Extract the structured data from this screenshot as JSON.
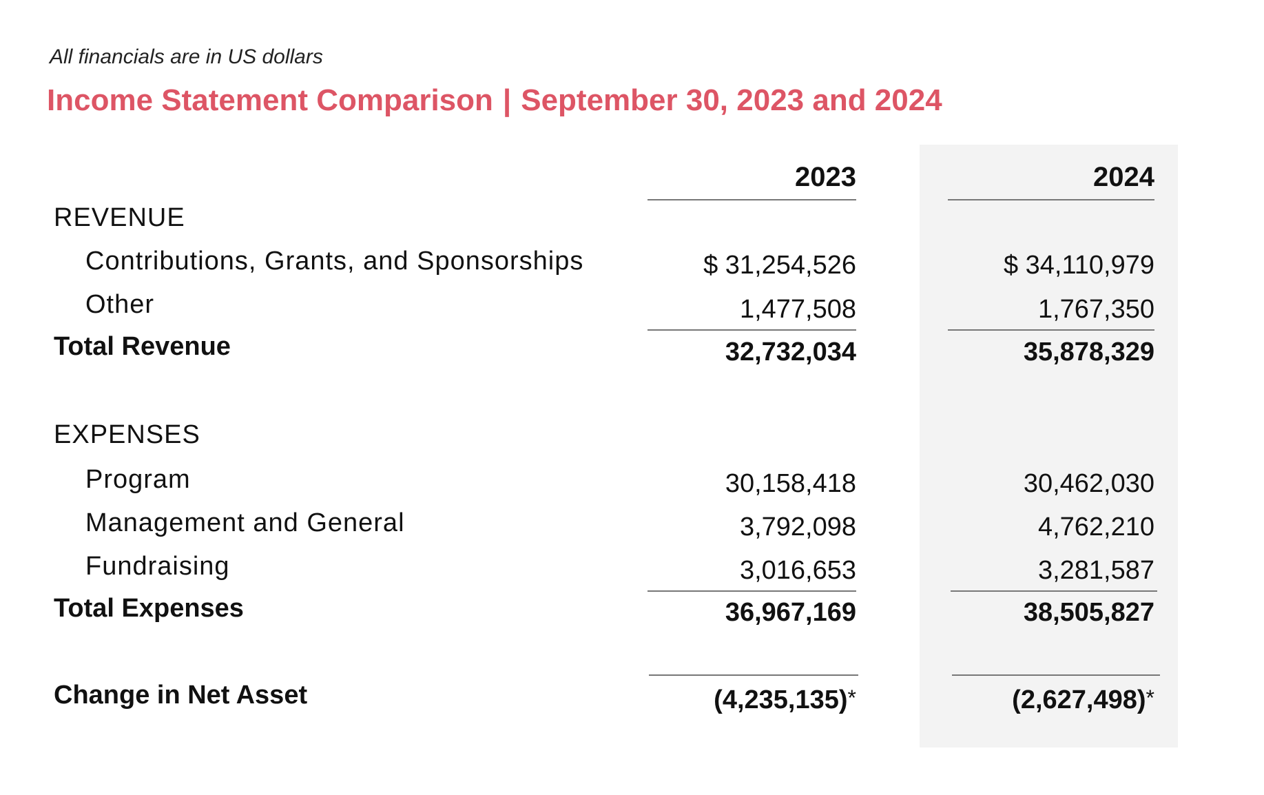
{
  "note": "All financials are in US dollars",
  "title": {
    "left": "Income Statement Comparison",
    "separator": "|",
    "right": "September 30, 2023 and 2024"
  },
  "columns": {
    "y2023": "2023",
    "y2024": "2024"
  },
  "revenue": {
    "header": "REVENUE",
    "contributions": {
      "label": "Contributions, Grants, and Sponsorships",
      "y2023": "$ 31,254,526",
      "y2024": "$ 34,110,979"
    },
    "other": {
      "label": "Other",
      "y2023": "1,477,508",
      "y2024": "1,767,350"
    },
    "total": {
      "label": "Total Revenue",
      "y2023": "32,732,034",
      "y2024": "35,878,329"
    }
  },
  "expenses": {
    "header": "EXPENSES",
    "program": {
      "label": "Program",
      "y2023": "30,158,418",
      "y2024": "30,462,030"
    },
    "management": {
      "label": "Management and General",
      "y2023": "3,792,098",
      "y2024": "4,762,210"
    },
    "fundraising": {
      "label": "Fundraising",
      "y2023": "3,016,653",
      "y2024": "3,281,587"
    },
    "total": {
      "label": "Total Expenses",
      "y2023": "36,967,169",
      "y2024": "38,505,827"
    }
  },
  "net": {
    "label": "Change in Net Asset",
    "y2023": "(4,235,135)",
    "y2024": "(2,627,498)",
    "footnote_mark": "*"
  },
  "colors": {
    "accent": "#dd5565",
    "shade": "#f3f3f3",
    "rule": "#777777"
  }
}
